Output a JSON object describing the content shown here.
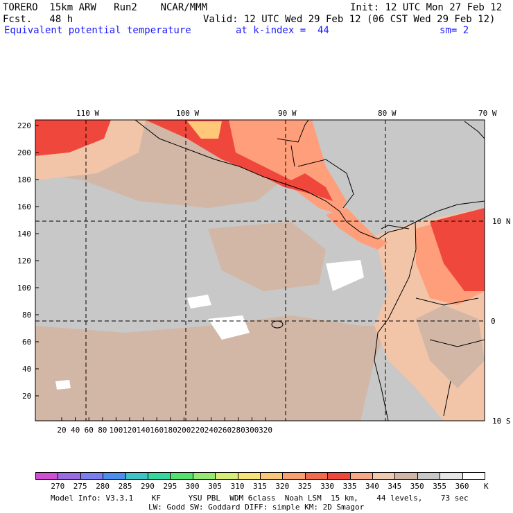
{
  "header": {
    "model": "TORERO  15km ARW   Run2    NCAR/MMM",
    "init": "Init: 12 UTC Mon 27 Feb 12",
    "fcst": "Fcst.   48 h",
    "valid": "Valid: 12 UTC Wed 29 Feb 12 (06 CST Wed 29 Feb 12)",
    "field": "Equivalent potential temperature",
    "level": "at k-index =  44",
    "smooth": "sm= 2"
  },
  "map": {
    "lon_labels": [
      "110 W",
      "100 W",
      "90 W",
      "80 W",
      "70 W"
    ],
    "lat_labels": [
      "10 N",
      "0",
      "10 S"
    ],
    "y_ticks": [
      "220",
      "200",
      "180",
      "160",
      "140",
      "120",
      "100",
      "80",
      "60",
      "40",
      "20"
    ],
    "x_ticks": [
      "20",
      "40",
      "60",
      "80",
      "100",
      "120",
      "140",
      "160",
      "180",
      "200",
      "220",
      "240",
      "260",
      "280",
      "300",
      "320"
    ],
    "colors": {
      "background": "#c8c8c8",
      "ocean_warm": "#d2b6a6",
      "warm": "#f2c5a8",
      "hot": "#ff9e7a",
      "very_hot": "#f0473d",
      "extreme": "#ffc878",
      "cool": "#e6e6e6",
      "white": "#ffffff"
    }
  },
  "colorbar": {
    "labels": [
      "270",
      "275",
      "280",
      "285",
      "290",
      "295",
      "300",
      "305",
      "310",
      "315",
      "320",
      "325",
      "330",
      "335",
      "340",
      "345",
      "350",
      "355",
      "360"
    ],
    "unit": "K",
    "colors": [
      "#d04ed4",
      "#9a6ce2",
      "#7a7ef0",
      "#4c8ef0",
      "#3ec4c4",
      "#36d6a0",
      "#56e070",
      "#96e870",
      "#d6ee78",
      "#f6e478",
      "#f8c878",
      "#f8a070",
      "#f06a4e",
      "#f0473d",
      "#f8a888",
      "#eecab0",
      "#d2b6a6",
      "#c8c8c8",
      "#e6e6e6",
      "#ffffff"
    ]
  },
  "footer": {
    "line1": "Model Info: V3.3.1    KF      YSU PBL  WDM 6class  Noah LSM  15 km,    44 levels,    73 sec",
    "line2": "LW: Godd SW: Goddard DIFF: simple KM: 2D Smagor"
  }
}
